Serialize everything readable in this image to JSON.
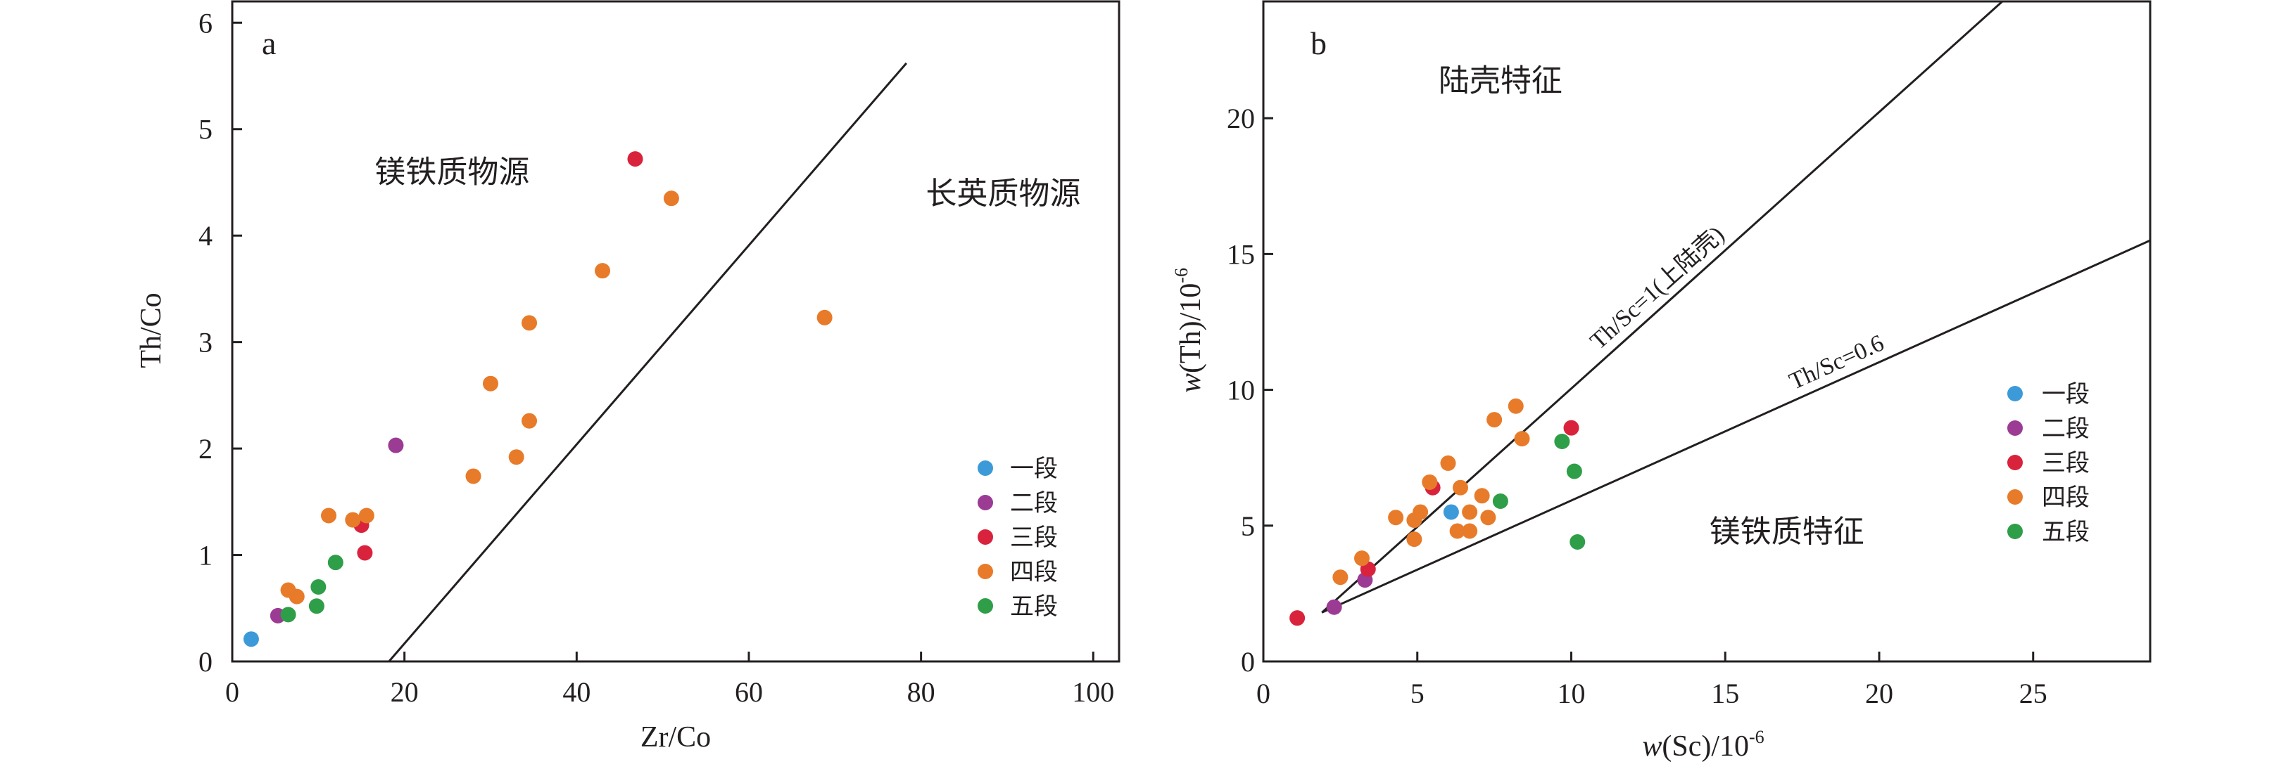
{
  "chart_data": [
    {
      "type": "scatter",
      "panel_label": "a",
      "xlabel": "Zr/Co",
      "ylabel": "Th/Co",
      "xlim": [
        0,
        103
      ],
      "ylim": [
        0,
        6.2
      ],
      "xticks": [
        0,
        20,
        40,
        60,
        80,
        100
      ],
      "yticks": [
        0,
        1,
        2,
        3,
        4,
        5,
        6
      ],
      "region_labels": [
        {
          "text": "镁铁质物源",
          "x": 19,
          "y": 4.5
        },
        {
          "text": "长英质物源",
          "x": 92,
          "y": 4.3
        }
      ],
      "reference_lines": [
        {
          "label": "",
          "points": [
            [
              18.2,
              0
            ],
            [
              78.3,
              5.62
            ]
          ]
        }
      ],
      "legend_position": "bottom-right",
      "series": [
        {
          "name": "一段",
          "color": "#3d9ad8",
          "points": [
            [
              2.2,
              0.21
            ]
          ]
        },
        {
          "name": "二段",
          "color": "#9b3b93",
          "points": [
            [
              5.3,
              0.43
            ],
            [
              19.0,
              2.03
            ]
          ]
        },
        {
          "name": "三段",
          "color": "#d9233c",
          "points": [
            [
              15.0,
              1.28
            ],
            [
              15.4,
              1.02
            ],
            [
              46.8,
              4.72
            ]
          ]
        },
        {
          "name": "四段",
          "color": "#e87b29",
          "points": [
            [
              6.5,
              0.67
            ],
            [
              7.5,
              0.61
            ],
            [
              11.2,
              1.37
            ],
            [
              14.0,
              1.33
            ],
            [
              15.6,
              1.37
            ],
            [
              28.0,
              1.74
            ],
            [
              30.0,
              2.61
            ],
            [
              33.0,
              1.92
            ],
            [
              34.5,
              2.26
            ],
            [
              34.5,
              3.18
            ],
            [
              43.0,
              3.67
            ],
            [
              51.0,
              4.35
            ],
            [
              68.8,
              3.23
            ]
          ]
        },
        {
          "name": "五段",
          "color": "#2f9e48",
          "points": [
            [
              6.5,
              0.44
            ],
            [
              9.8,
              0.52
            ],
            [
              10.0,
              0.7
            ],
            [
              12.0,
              0.93
            ]
          ]
        }
      ]
    },
    {
      "type": "scatter",
      "panel_label": "b",
      "xlabel_prefix": "w",
      "xlabel_main": "(Sc)/10",
      "xlabel_sup": "-6",
      "ylabel_prefix": "w",
      "ylabel_main": "(Th)/10",
      "ylabel_sup": "-6",
      "xlim": [
        0,
        28.8
      ],
      "ylim": [
        0,
        24.3
      ],
      "xticks": [
        0,
        5,
        10,
        15,
        20,
        25
      ],
      "yticks": [
        0,
        5,
        10,
        15,
        20
      ],
      "region_labels": [
        {
          "text": "陆壳特征",
          "x": 7.7,
          "y": 21.0
        },
        {
          "text": "镁铁质特征",
          "x": 17.0,
          "y": 4.4
        }
      ],
      "reference_lines": [
        {
          "label": "Th/Sc=1(上陆壳)",
          "points": [
            [
              1.9,
              1.8
            ],
            [
              24.0,
              24.3
            ]
          ]
        },
        {
          "label": "Th/Sc=0.6",
          "points": [
            [
              1.9,
              1.8
            ],
            [
              28.8,
              15.5
            ]
          ]
        }
      ],
      "legend_position": "right",
      "series": [
        {
          "name": "一段",
          "color": "#3d9ad8",
          "points": [
            [
              6.1,
              5.5
            ]
          ]
        },
        {
          "name": "二段",
          "color": "#9b3b93",
          "points": [
            [
              2.3,
              2.0
            ],
            [
              3.3,
              3.0
            ]
          ]
        },
        {
          "name": "三段",
          "color": "#d9233c",
          "points": [
            [
              1.1,
              1.6
            ],
            [
              3.4,
              3.4
            ],
            [
              5.5,
              6.4
            ],
            [
              10.0,
              8.6
            ]
          ]
        },
        {
          "name": "四段",
          "color": "#e87b29",
          "points": [
            [
              2.5,
              3.1
            ],
            [
              3.2,
              3.8
            ],
            [
              4.3,
              5.3
            ],
            [
              4.9,
              4.5
            ],
            [
              4.9,
              5.2
            ],
            [
              5.1,
              5.5
            ],
            [
              5.4,
              6.6
            ],
            [
              6.0,
              7.3
            ],
            [
              6.3,
              4.8
            ],
            [
              6.4,
              6.4
            ],
            [
              6.7,
              4.8
            ],
            [
              6.7,
              5.5
            ],
            [
              7.1,
              6.1
            ],
            [
              7.3,
              5.3
            ],
            [
              7.5,
              8.9
            ],
            [
              8.2,
              9.4
            ],
            [
              8.4,
              8.2
            ]
          ]
        },
        {
          "name": "五段",
          "color": "#2f9e48",
          "points": [
            [
              7.7,
              5.9
            ],
            [
              9.7,
              8.1
            ],
            [
              10.1,
              7.0
            ],
            [
              10.2,
              4.4
            ]
          ]
        }
      ]
    }
  ]
}
